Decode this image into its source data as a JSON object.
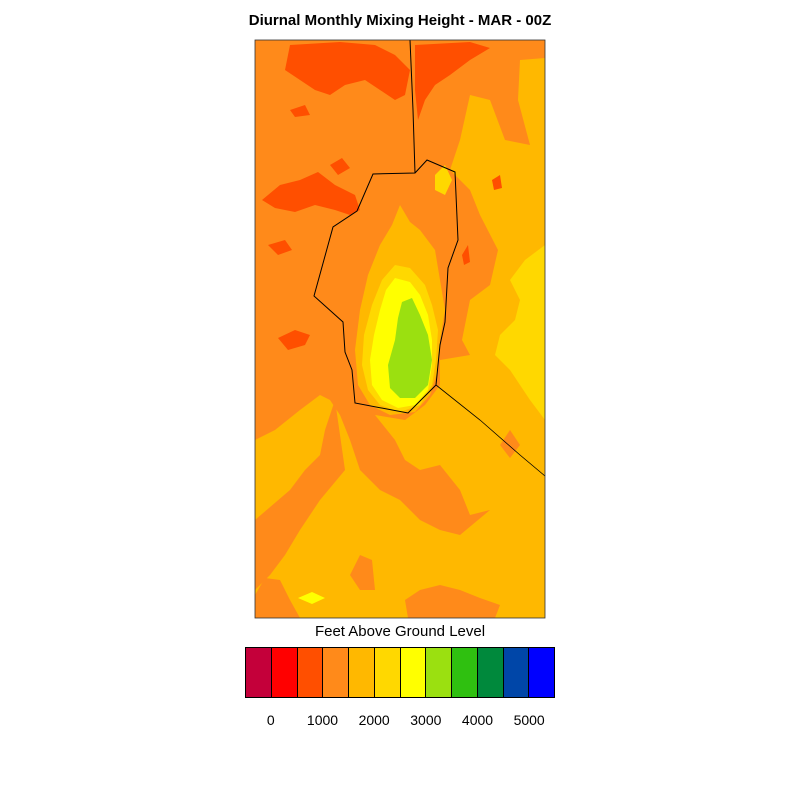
{
  "title": "Diurnal Monthly Mixing Height - MAR - 00Z",
  "legend": {
    "title": "Feet Above Ground Level",
    "colors": [
      "#c4003a",
      "#ff0000",
      "#ff4f00",
      "#ff8a1a",
      "#ffb800",
      "#ffd800",
      "#ffff00",
      "#9be010",
      "#2fc010",
      "#00893c",
      "#0046a8",
      "#0000ff"
    ],
    "tick_labels": [
      "0",
      "1000",
      "2000",
      "3000",
      "4000",
      "5000"
    ]
  },
  "map": {
    "region_colors": {
      "background": "#ffb800",
      "deep_orange": "#ff8a1a",
      "red_orange": "#ff4f00",
      "gold": "#ffd800",
      "yellow": "#ffff00",
      "green": "#9be010"
    }
  }
}
